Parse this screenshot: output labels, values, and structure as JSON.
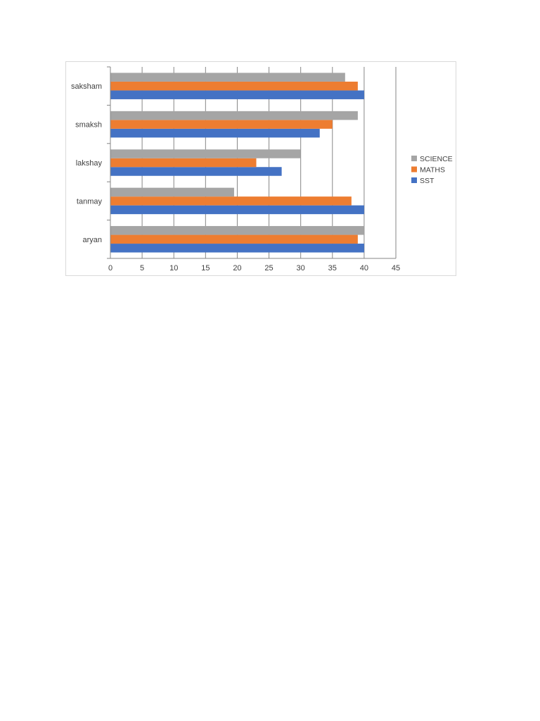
{
  "chart_data": {
    "type": "bar",
    "orientation": "horizontal",
    "categories": [
      "aryan",
      "tanmay",
      "lakshay",
      "smaksh",
      "saksham"
    ],
    "series": [
      {
        "name": "SST",
        "color": "#4472c4",
        "values": [
          40,
          40,
          27,
          33,
          40
        ]
      },
      {
        "name": "MATHS",
        "color": "#ed7d31",
        "values": [
          39,
          38,
          23,
          35,
          39
        ]
      },
      {
        "name": "SCIENCE",
        "color": "#a5a5a5",
        "values": [
          40,
          19.5,
          30,
          39,
          37
        ]
      }
    ],
    "xlim": [
      0,
      45
    ],
    "x_ticks": [
      0,
      5,
      10,
      15,
      20,
      25,
      30,
      35,
      40,
      45
    ],
    "grid": "vertical",
    "legend": {
      "position": "right",
      "order": [
        "SCIENCE",
        "MATHS",
        "SST"
      ]
    },
    "title": "",
    "xlabel": "",
    "ylabel": ""
  }
}
